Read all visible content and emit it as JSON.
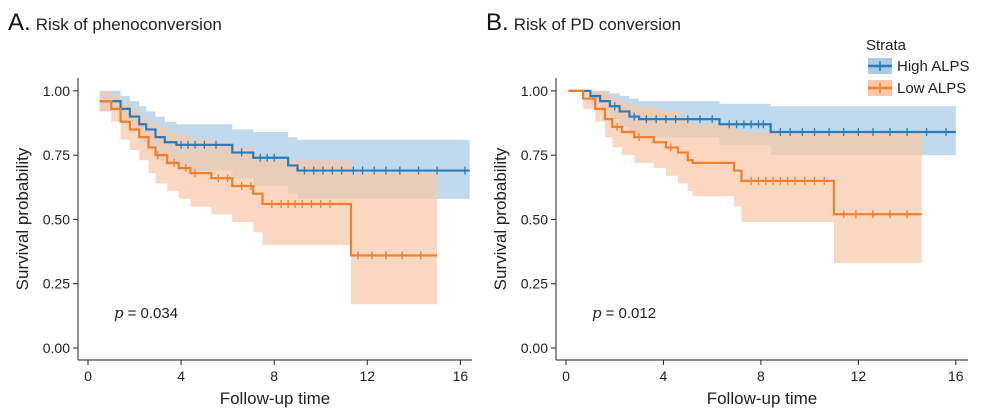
{
  "colors": {
    "high": "#2b7bba",
    "high_fill": "#a9cbe6",
    "low": "#f07f2c",
    "low_fill": "#f8c7a8"
  },
  "legend": {
    "title": "Strata",
    "items": [
      {
        "label": "High ALPS",
        "color": "#2b7bba",
        "fill": "#a9cbe6"
      },
      {
        "label": "Low ALPS",
        "color": "#f07f2c",
        "fill": "#f8c7a8"
      }
    ]
  },
  "chart_data": [
    {
      "type": "line",
      "panel_letter": "A.",
      "title": "Risk of phenoconversion",
      "xlabel": "Follow-up time",
      "ylabel": "Survival probability",
      "xlim": [
        0,
        16.5
      ],
      "ylim": [
        0,
        1.05
      ],
      "xticks": [
        0,
        4,
        8,
        12,
        16
      ],
      "yticks": [
        0,
        0.25,
        0.5,
        0.75,
        1.0
      ],
      "yticklabels": [
        "0.00",
        "0.25",
        "0.50",
        "0.75",
        "1.00"
      ],
      "p_label": "p",
      "p_value": "= 0.034",
      "series": [
        {
          "name": "High ALPS",
          "steps": [
            [
              0.5,
              0.96
            ],
            [
              1.4,
              0.93
            ],
            [
              1.8,
              0.9
            ],
            [
              2.2,
              0.87
            ],
            [
              2.5,
              0.85
            ],
            [
              2.9,
              0.82
            ],
            [
              3.3,
              0.8
            ],
            [
              3.8,
              0.79
            ],
            [
              6.2,
              0.76
            ],
            [
              7.1,
              0.74
            ],
            [
              8.6,
              0.71
            ],
            [
              9.0,
              0.69
            ],
            [
              16.4,
              0.69
            ]
          ],
          "lower": [
            [
              0.5,
              0.92
            ],
            [
              1.4,
              0.88
            ],
            [
              1.8,
              0.84
            ],
            [
              2.2,
              0.8
            ],
            [
              2.5,
              0.77
            ],
            [
              2.9,
              0.73
            ],
            [
              3.3,
              0.71
            ],
            [
              3.8,
              0.69
            ],
            [
              6.2,
              0.66
            ],
            [
              7.1,
              0.63
            ],
            [
              8.6,
              0.6
            ],
            [
              9.0,
              0.58
            ],
            [
              16.4,
              0.58
            ]
          ],
          "upper": [
            [
              0.5,
              1.0
            ],
            [
              1.4,
              0.98
            ],
            [
              1.8,
              0.96
            ],
            [
              2.2,
              0.94
            ],
            [
              2.5,
              0.92
            ],
            [
              2.9,
              0.9
            ],
            [
              3.3,
              0.88
            ],
            [
              3.8,
              0.87
            ],
            [
              6.2,
              0.85
            ],
            [
              7.1,
              0.84
            ],
            [
              8.6,
              0.82
            ],
            [
              9.0,
              0.81
            ],
            [
              16.4,
              0.81
            ]
          ],
          "censor": [
            4.0,
            4.3,
            4.6,
            5.0,
            5.5,
            6.6,
            7.4,
            7.7,
            8.0,
            9.3,
            9.7,
            10.1,
            10.5,
            10.9,
            11.4,
            11.8,
            12.3,
            12.8,
            13.4,
            14.2,
            15.0,
            16.2
          ]
        },
        {
          "name": "Low ALPS",
          "steps": [
            [
              0.5,
              0.96
            ],
            [
              1.0,
              0.93
            ],
            [
              1.4,
              0.88
            ],
            [
              1.8,
              0.85
            ],
            [
              2.2,
              0.82
            ],
            [
              2.6,
              0.78
            ],
            [
              2.9,
              0.75
            ],
            [
              3.4,
              0.72
            ],
            [
              3.9,
              0.7
            ],
            [
              4.4,
              0.68
            ],
            [
              5.3,
              0.66
            ],
            [
              6.2,
              0.63
            ],
            [
              7.1,
              0.6
            ],
            [
              7.5,
              0.56
            ],
            [
              11.3,
              0.36
            ],
            [
              15.0,
              0.36
            ]
          ],
          "lower": [
            [
              0.5,
              0.92
            ],
            [
              1.0,
              0.88
            ],
            [
              1.4,
              0.81
            ],
            [
              1.8,
              0.77
            ],
            [
              2.2,
              0.73
            ],
            [
              2.6,
              0.68
            ],
            [
              2.9,
              0.64
            ],
            [
              3.4,
              0.61
            ],
            [
              3.9,
              0.58
            ],
            [
              4.4,
              0.55
            ],
            [
              5.3,
              0.52
            ],
            [
              6.2,
              0.49
            ],
            [
              7.1,
              0.45
            ],
            [
              7.5,
              0.4
            ],
            [
              11.3,
              0.17
            ],
            [
              15.0,
              0.17
            ]
          ],
          "upper": [
            [
              0.5,
              1.0
            ],
            [
              1.0,
              0.98
            ],
            [
              1.4,
              0.95
            ],
            [
              1.8,
              0.93
            ],
            [
              2.2,
              0.9
            ],
            [
              2.6,
              0.88
            ],
            [
              2.9,
              0.86
            ],
            [
              3.4,
              0.84
            ],
            [
              3.9,
              0.83
            ],
            [
              4.4,
              0.81
            ],
            [
              5.3,
              0.8
            ],
            [
              6.2,
              0.78
            ],
            [
              7.1,
              0.75
            ],
            [
              7.5,
              0.73
            ],
            [
              11.3,
              0.68
            ],
            [
              15.0,
              0.68
            ]
          ],
          "censor": [
            3.0,
            3.7,
            4.2,
            4.6,
            5.6,
            6.0,
            6.6,
            7.0,
            7.9,
            8.3,
            8.6,
            8.9,
            9.2,
            9.6,
            10.0,
            10.4,
            11.6,
            12.2,
            12.8,
            13.5,
            14.3
          ]
        }
      ]
    },
    {
      "type": "line",
      "panel_letter": "B.",
      "title": "Risk of PD conversion",
      "xlabel": "Follow-up time",
      "ylabel": "Survival probability",
      "xlim": [
        0,
        16.5
      ],
      "ylim": [
        0,
        1.05
      ],
      "xticks": [
        0,
        4,
        8,
        12,
        16
      ],
      "yticks": [
        0,
        0.25,
        0.5,
        0.75,
        1.0
      ],
      "yticklabels": [
        "0.00",
        "0.25",
        "0.50",
        "0.75",
        "1.00"
      ],
      "p_label": "p",
      "p_value": "= 0.012",
      "series": [
        {
          "name": "High ALPS",
          "steps": [
            [
              0.1,
              1.0
            ],
            [
              1.0,
              0.98
            ],
            [
              1.4,
              0.96
            ],
            [
              1.8,
              0.94
            ],
            [
              2.2,
              0.92
            ],
            [
              2.6,
              0.9
            ],
            [
              3.0,
              0.89
            ],
            [
              6.3,
              0.87
            ],
            [
              8.4,
              0.84
            ],
            [
              16.0,
              0.84
            ]
          ],
          "lower": [
            [
              0.1,
              1.0
            ],
            [
              1.0,
              0.95
            ],
            [
              1.4,
              0.92
            ],
            [
              1.8,
              0.89
            ],
            [
              2.2,
              0.86
            ],
            [
              2.6,
              0.83
            ],
            [
              3.0,
              0.82
            ],
            [
              6.3,
              0.79
            ],
            [
              8.4,
              0.75
            ],
            [
              16.0,
              0.75
            ]
          ],
          "upper": [
            [
              0.1,
              1.0
            ],
            [
              1.0,
              1.0
            ],
            [
              1.4,
              1.0
            ],
            [
              1.8,
              0.99
            ],
            [
              2.2,
              0.98
            ],
            [
              2.6,
              0.97
            ],
            [
              3.0,
              0.96
            ],
            [
              6.3,
              0.95
            ],
            [
              8.4,
              0.94
            ],
            [
              16.0,
              0.94
            ]
          ],
          "censor": [
            2.0,
            2.8,
            3.3,
            3.7,
            4.1,
            4.5,
            5.0,
            5.5,
            6.0,
            6.7,
            7.0,
            7.3,
            7.6,
            7.9,
            8.1,
            8.8,
            9.2,
            9.7,
            10.2,
            10.8,
            11.4,
            12.0,
            12.6,
            13.3,
            14.0,
            14.8,
            15.6
          ]
        },
        {
          "name": "Low ALPS",
          "steps": [
            [
              0.1,
              1.0
            ],
            [
              0.7,
              0.97
            ],
            [
              1.2,
              0.93
            ],
            [
              1.6,
              0.89
            ],
            [
              1.9,
              0.86
            ],
            [
              2.3,
              0.84
            ],
            [
              2.8,
              0.82
            ],
            [
              3.6,
              0.8
            ],
            [
              4.1,
              0.78
            ],
            [
              4.6,
              0.76
            ],
            [
              5.0,
              0.73
            ],
            [
              5.2,
              0.72
            ],
            [
              6.9,
              0.69
            ],
            [
              7.2,
              0.65
            ],
            [
              11.0,
              0.52
            ],
            [
              14.6,
              0.52
            ]
          ],
          "lower": [
            [
              0.1,
              1.0
            ],
            [
              0.7,
              0.93
            ],
            [
              1.2,
              0.88
            ],
            [
              1.6,
              0.82
            ],
            [
              1.9,
              0.78
            ],
            [
              2.3,
              0.75
            ],
            [
              2.8,
              0.72
            ],
            [
              3.6,
              0.7
            ],
            [
              4.1,
              0.67
            ],
            [
              4.6,
              0.64
            ],
            [
              5.0,
              0.61
            ],
            [
              5.2,
              0.59
            ],
            [
              6.9,
              0.55
            ],
            [
              7.2,
              0.49
            ],
            [
              11.0,
              0.33
            ],
            [
              14.6,
              0.33
            ]
          ],
          "upper": [
            [
              0.1,
              1.0
            ],
            [
              0.7,
              1.0
            ],
            [
              1.2,
              1.0
            ],
            [
              1.6,
              0.99
            ],
            [
              1.9,
              0.97
            ],
            [
              2.3,
              0.95
            ],
            [
              2.8,
              0.94
            ],
            [
              3.6,
              0.93
            ],
            [
              4.1,
              0.92
            ],
            [
              4.6,
              0.9
            ],
            [
              5.0,
              0.88
            ],
            [
              5.2,
              0.87
            ],
            [
              6.9,
              0.85
            ],
            [
              7.2,
              0.84
            ],
            [
              11.0,
              0.84
            ],
            [
              14.6,
              0.84
            ]
          ],
          "censor": [
            2.1,
            3.0,
            4.3,
            7.6,
            7.9,
            8.2,
            8.5,
            8.8,
            9.1,
            9.4,
            9.8,
            10.2,
            10.6,
            11.4,
            11.9,
            12.6,
            13.3,
            14.0
          ]
        }
      ]
    }
  ]
}
